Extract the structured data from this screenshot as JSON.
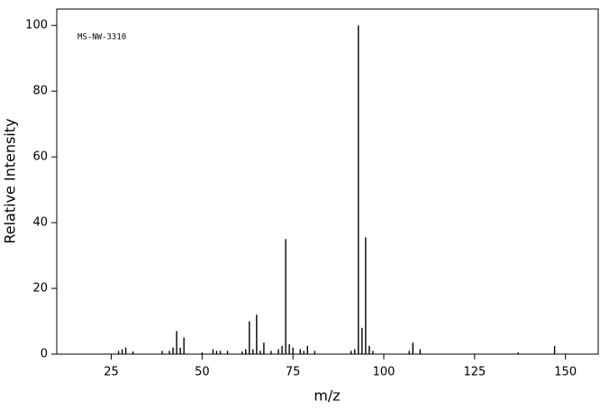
{
  "chart_data": {
    "type": "bar",
    "annotation": "MS-NW-3310",
    "x_label": "m/z",
    "y_label": "Relative Intensity",
    "x": [
      27,
      28,
      29,
      31,
      39,
      41,
      42,
      43,
      44,
      45,
      50,
      53,
      54,
      55,
      57,
      61,
      62,
      63,
      64,
      65,
      66,
      67,
      69,
      71,
      72,
      73,
      74,
      75,
      77,
      78,
      79,
      81,
      91,
      92,
      93,
      94,
      95,
      96,
      97,
      107,
      108,
      110,
      137,
      147
    ],
    "values": [
      1,
      1.5,
      2,
      0.8,
      1,
      1,
      2,
      7,
      2,
      5,
      0.5,
      1.5,
      1,
      1,
      1,
      0.8,
      1.5,
      10,
      1.5,
      12,
      1,
      3.5,
      1,
      1.5,
      2.5,
      35,
      3,
      2,
      1.5,
      1,
      2.5,
      1,
      1,
      1.5,
      100,
      8,
      35.5,
      2.5,
      1,
      1,
      3.5,
      1.5,
      0.5,
      2.5
    ],
    "color": "#000000",
    "xlim": [
      10,
      159
    ],
    "ylim": [
      0,
      105
    ],
    "xticks": [
      25,
      50,
      75,
      100,
      125,
      150
    ],
    "yticks": [
      0,
      20,
      40,
      60,
      80,
      100
    ]
  }
}
